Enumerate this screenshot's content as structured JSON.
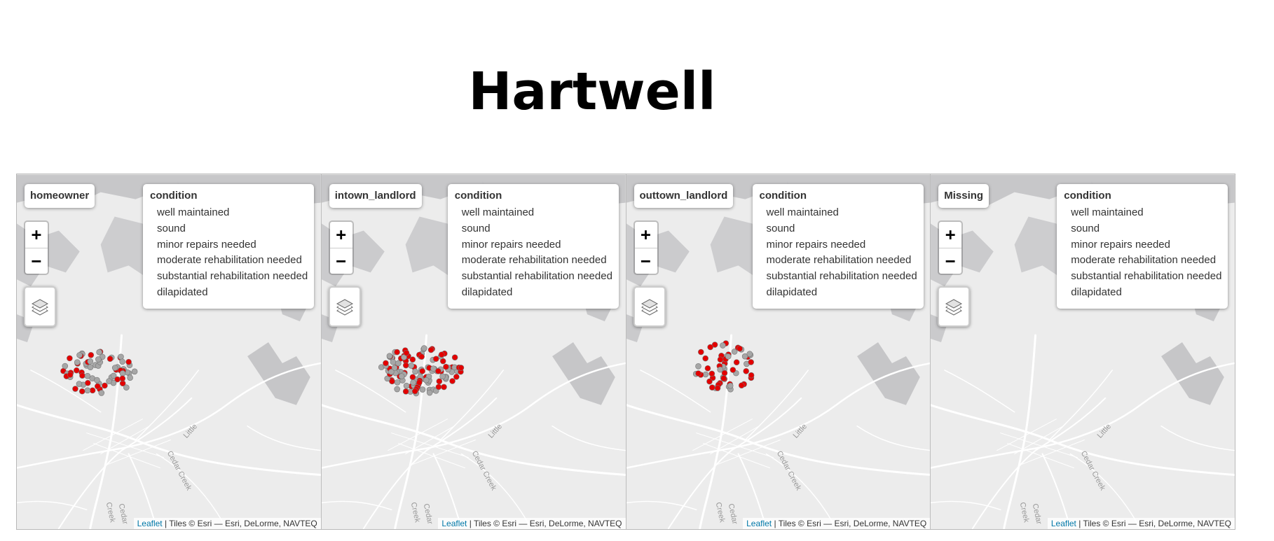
{
  "title": "Hartwell",
  "colors": {
    "well": "#bdbdbd",
    "bad": "#ff0000",
    "point_gray": "#a6a6a6",
    "point_red": "#e30000"
  },
  "zoom": {
    "in_label": "+",
    "out_label": "−"
  },
  "legend": {
    "title": "condition",
    "items": [
      {
        "label": "well maintained",
        "color": "#bdbdbd"
      },
      {
        "label": "sound",
        "color": "#bdbdbd"
      },
      {
        "label": "minor repairs needed",
        "color": "#bdbdbd"
      },
      {
        "label": "moderate rehabilitation needed",
        "color": "#ff0000"
      },
      {
        "label": "substantial rehabilitation needed",
        "color": "#ff0000"
      },
      {
        "label": "dilapidated",
        "color": "#ff0000"
      }
    ]
  },
  "attribution": {
    "link": "Leaflet",
    "text": " | Tiles © Esri — Esri, DeLorme, NAVTEQ"
  },
  "map_labels": {
    "little": "Little",
    "cedar_creek": "Cedar Creek",
    "cedar": "Cedar",
    "creek": "Creek"
  },
  "panels": [
    {
      "group": "homeowner"
    },
    {
      "group": "intown_landlord"
    },
    {
      "group": "outtown_landlord"
    },
    {
      "group": "Missing"
    }
  ]
}
